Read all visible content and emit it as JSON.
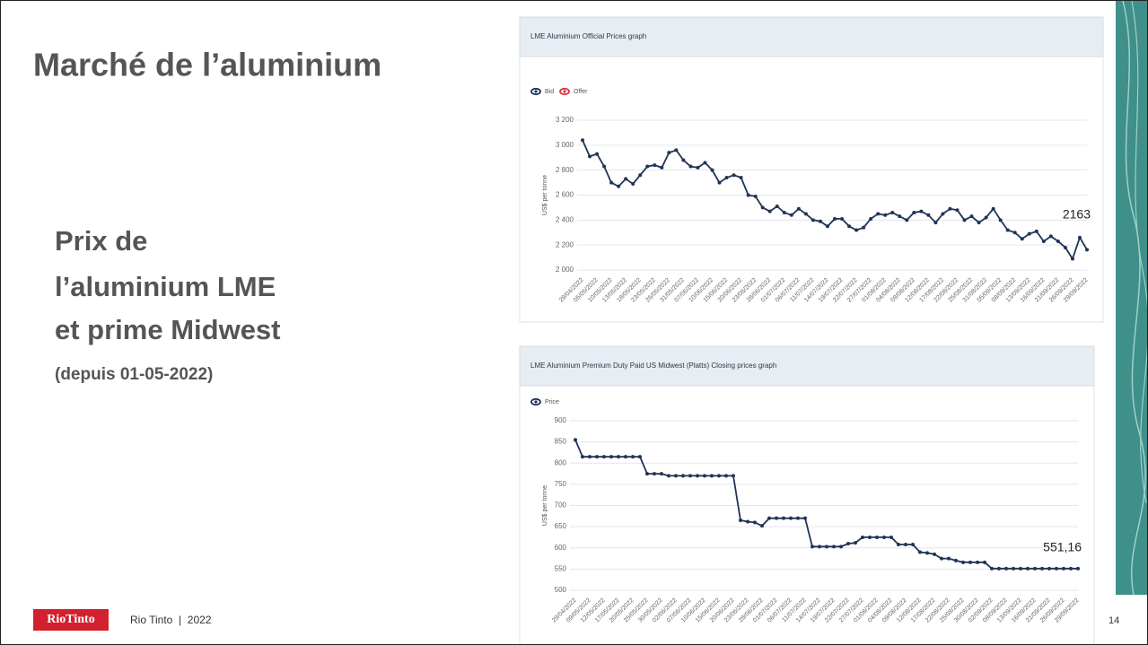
{
  "slide": {
    "title": "Marché de l’aluminium",
    "subtitle_lines": [
      "Prix de",
      "l’aluminium LME",
      "et prime Midwest"
    ],
    "date_note": "(depuis 01-05-2022)",
    "footer_logo": "RioTinto",
    "footer_text": "Rio Tinto  |  2022",
    "page_number": "14"
  },
  "chart_data": [
    {
      "type": "line",
      "title": "LME Aluminium Official Prices graph",
      "y_label": "US$ per tonne",
      "annotation": "2163",
      "grid": true,
      "hidden_series": [
        {
          "name": "Offer",
          "color": "#d9363e"
        }
      ],
      "ylim": [
        2000,
        3200
      ],
      "yticks": [
        {
          "value": 2000,
          "label": "2 000"
        },
        {
          "value": 2200,
          "label": "2 200"
        },
        {
          "value": 2400,
          "label": "2 400"
        },
        {
          "value": 2600,
          "label": "2 600"
        },
        {
          "value": 2800,
          "label": "2 800"
        },
        {
          "value": 3000,
          "label": "3 000"
        },
        {
          "value": 3200,
          "label": "3 200"
        }
      ],
      "categories": [
        "29/04/2022",
        null,
        "05/05/2022",
        null,
        "10/05/2022",
        null,
        "13/05/2022",
        null,
        "18/05/2022",
        null,
        "23/05/2022",
        null,
        "26/05/2022",
        null,
        "31/05/2022",
        null,
        "07/06/2022",
        null,
        "10/06/2022",
        null,
        "15/06/2022",
        null,
        "20/06/2022",
        null,
        "23/06/2022",
        null,
        "28/06/2022",
        null,
        "01/07/2022",
        null,
        "06/07/2022",
        null,
        "11/07/2022",
        null,
        "14/07/2022",
        null,
        "19/07/2022",
        null,
        "22/07/2022",
        null,
        "27/07/2022",
        null,
        "01/08/2022",
        null,
        "04/08/2022",
        null,
        "09/08/2022",
        null,
        "12/08/2022",
        null,
        "17/08/2022",
        null,
        "22/08/2022",
        null,
        "25/08/2022",
        null,
        "31/08/2022",
        null,
        "05/09/2022",
        null,
        "08/09/2022",
        null,
        "13/09/2022",
        null,
        "16/09/2022",
        null,
        "21/09/2022",
        null,
        "26/09/2022",
        null,
        "29/09/2022"
      ],
      "series": [
        {
          "name": "Bid",
          "color": "#1f3554",
          "values": [
            3040,
            2910,
            2930,
            2830,
            2700,
            2670,
            2730,
            2690,
            2760,
            2830,
            2840,
            2820,
            2940,
            2960,
            2880,
            2830,
            2820,
            2860,
            2800,
            2700,
            2740,
            2760,
            2740,
            2600,
            2590,
            2500,
            2470,
            2510,
            2460,
            2440,
            2490,
            2450,
            2400,
            2390,
            2350,
            2410,
            2410,
            2350,
            2320,
            2340,
            2410,
            2450,
            2440,
            2460,
            2430,
            2400,
            2460,
            2470,
            2440,
            2380,
            2450,
            2490,
            2480,
            2400,
            2430,
            2380,
            2420,
            2490,
            2400,
            2320,
            2300,
            2250,
            2290,
            2310,
            2230,
            2270,
            2230,
            2180,
            2090,
            2260,
            2163
          ]
        }
      ]
    },
    {
      "type": "line",
      "title": "LME Aluminium Premium Duty Paid US Midwest (Platts) Closing prices graph",
      "y_label": "US$ per tonne",
      "annotation": "551,16",
      "grid": true,
      "ylim": [
        500,
        900
      ],
      "yticks": [
        500,
        550,
        600,
        650,
        700,
        750,
        800,
        850,
        900
      ],
      "categories": [
        "29/04/2022",
        null,
        "09/05/2022",
        null,
        "12/05/2022",
        null,
        "17/05/2022",
        null,
        "20/05/2022",
        null,
        "25/05/2022",
        null,
        "30/05/2022",
        null,
        "02/06/2022",
        null,
        "07/06/2022",
        null,
        "10/06/2022",
        null,
        "15/06/2022",
        null,
        "20/06/2022",
        null,
        "23/06/2022",
        null,
        "28/06/2022",
        null,
        "01/07/2022",
        null,
        "06/07/2022",
        null,
        "11/07/2022",
        null,
        "14/07/2022",
        null,
        "19/07/2022",
        null,
        "22/07/2022",
        null,
        "27/07/2022",
        null,
        "01/08/2022",
        null,
        "04/08/2022",
        null,
        "09/08/2022",
        null,
        "12/08/2022",
        null,
        "17/08/2022",
        null,
        "22/08/2022",
        null,
        "25/08/2022",
        null,
        "30/08/2022",
        null,
        "02/09/2022",
        null,
        "08/09/2022",
        null,
        "13/09/2022",
        null,
        "16/09/2022",
        null,
        "21/09/2022",
        null,
        "26/09/2022",
        null,
        "29/09/2022"
      ],
      "series": [
        {
          "name": "Price",
          "color": "#1f3554",
          "values": [
            855,
            815,
            815,
            815,
            815,
            815,
            815,
            815,
            815,
            815,
            775,
            775,
            775,
            770,
            770,
            770,
            770,
            770,
            770,
            770,
            770,
            770,
            770,
            665,
            662,
            660,
            652,
            670,
            670,
            670,
            670,
            670,
            670,
            603,
            603,
            603,
            603,
            603,
            610,
            612,
            625,
            625,
            625,
            625,
            625,
            608,
            608,
            608,
            590,
            588,
            585,
            575,
            575,
            570,
            566,
            566,
            566,
            566,
            551.16,
            551.16,
            551.16,
            551.16,
            551.16,
            551.16,
            551.16,
            551.16,
            551.16,
            551.16,
            551.16,
            551.16,
            551.16
          ]
        }
      ]
    }
  ]
}
